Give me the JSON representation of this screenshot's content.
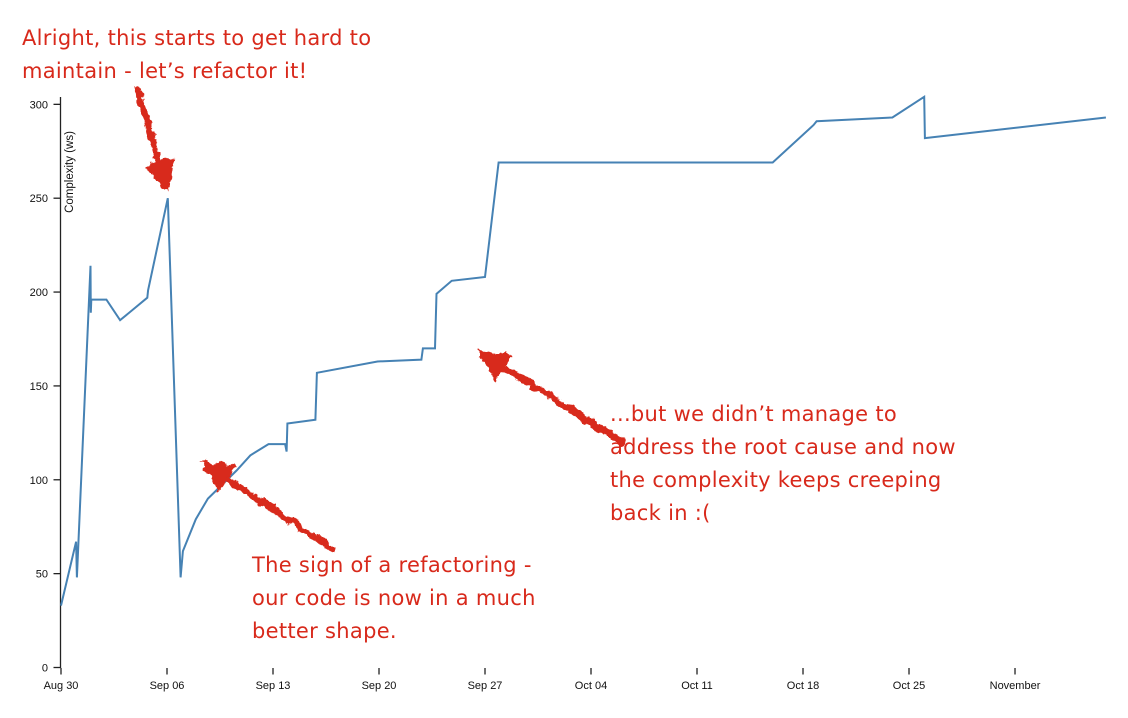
{
  "chart_data": {
    "type": "line",
    "title": "",
    "xlabel": "",
    "ylabel": "Complexity (ws)",
    "grid": false,
    "legend": false,
    "line_color": "#4682b4",
    "axis_color": "#222222",
    "annotation_color": "#d8291b",
    "x_axis": {
      "unit": "days since Aug 30",
      "tick_days": [
        0,
        7,
        14,
        21,
        28,
        35,
        42,
        49,
        56,
        63
      ],
      "tick_labels": [
        "Aug 30",
        "Sep 06",
        "Sep 13",
        "Sep 20",
        "Sep 27",
        "Oct 04",
        "Oct 11",
        "Oct 18",
        "Oct 25",
        "November"
      ]
    },
    "y_axis": {
      "ticks": [
        0,
        50,
        100,
        150,
        200,
        250,
        300
      ],
      "range": [
        0,
        304
      ]
    },
    "series": [
      {
        "name": "complexity",
        "points": [
          [
            0.0,
            33
          ],
          [
            1.0,
            67
          ],
          [
            1.05,
            48
          ],
          [
            1.95,
            214
          ],
          [
            1.97,
            189
          ],
          [
            2.0,
            196
          ],
          [
            3.0,
            196
          ],
          [
            3.9,
            185
          ],
          [
            5.7,
            197
          ],
          [
            5.75,
            201
          ],
          [
            7.05,
            250
          ],
          [
            7.9,
            48
          ],
          [
            8.05,
            62
          ],
          [
            8.9,
            79
          ],
          [
            9.7,
            90
          ],
          [
            11.6,
            105
          ],
          [
            12.5,
            113
          ],
          [
            13.7,
            119
          ],
          [
            14.8,
            119
          ],
          [
            14.9,
            115
          ],
          [
            14.95,
            130
          ],
          [
            16.8,
            132
          ],
          [
            16.9,
            157
          ],
          [
            20.9,
            163
          ],
          [
            23.8,
            164
          ],
          [
            23.9,
            170
          ],
          [
            24.7,
            170
          ],
          [
            24.8,
            199
          ],
          [
            25.8,
            206
          ],
          [
            28.0,
            208
          ],
          [
            28.9,
            269
          ],
          [
            47.0,
            269
          ],
          [
            49.7,
            289
          ],
          [
            49.9,
            291
          ],
          [
            54.9,
            293
          ],
          [
            57.0,
            304
          ],
          [
            57.05,
            282
          ],
          [
            69.0,
            293
          ]
        ]
      }
    ],
    "annotations": [
      {
        "id": "refactor-note",
        "text": "Alright, this starts to get hard to\nmaintain - let’s refactor it!",
        "arrow_from": [
          137,
          88
        ],
        "arrow_tip": [
          168,
          192
        ]
      },
      {
        "id": "refactoring-sign-note",
        "text": "The sign of a refactoring -\nour code is now in a much\nbetter shape.",
        "arrow_from": [
          333,
          549
        ],
        "arrow_tip": [
          200,
          461
        ]
      },
      {
        "id": "complexity-creep-note",
        "text": "...but we didn’t manage to\naddress the root cause and now\nthe complexity keeps creeping\nback in :(",
        "arrow_from": [
          622,
          442
        ],
        "arrow_tip": [
          477,
          351
        ]
      }
    ]
  }
}
